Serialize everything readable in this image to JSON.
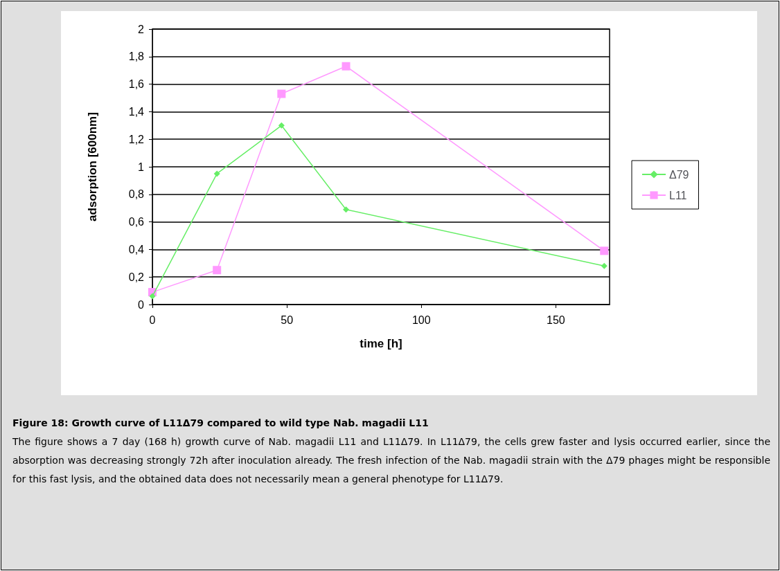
{
  "chart_data": {
    "type": "line",
    "title": "Figure 18: Growth curve of L11Δ79 compared to wild type Nab. magadii L11",
    "xlabel": "time [h]",
    "ylabel": "adsorption [600nm]",
    "annotations": [
      "The figure shows a 7 day (168 h) growth curve of Nab. magadii L11 and L11Δ79. In L11Δ79, the cells grew faster and lysis occurred earlier, since the absorption was decreasing strongly 72h after inoculation already. The fresh infection of the Nab. magadii strain with the Δ79 phages might be responsible for this fast lysis, and the obtained data does not necessarily mean a general phenotype for L11Δ79."
    ],
    "x": [
      0,
      24,
      48,
      72,
      168
    ],
    "series": [
      {
        "name": "Δ79",
        "color": "#66ee66",
        "marker": "diamond",
        "values": [
          0.06,
          0.95,
          1.3,
          0.69,
          0.28
        ]
      },
      {
        "name": "L11",
        "color": "#ff99ff",
        "marker": "square",
        "values": [
          0.09,
          0.25,
          1.53,
          1.73,
          0.39
        ]
      }
    ],
    "xlim": [
      0,
      170
    ],
    "xticks": [
      0,
      50,
      100,
      150
    ],
    "ylim": [
      0,
      2
    ],
    "yticks": [
      0,
      {
        "value": 0.2,
        "label": "0,2"
      },
      {
        "value": 0.4,
        "label": "0,4"
      },
      {
        "value": 0.6,
        "label": "0,6"
      },
      {
        "value": 0.8,
        "label": "0,8"
      },
      1,
      {
        "value": 1.2,
        "label": "1,2"
      },
      {
        "value": 1.4,
        "label": "1,4"
      },
      {
        "value": 1.6,
        "label": "1,6"
      },
      {
        "value": 1.8,
        "label": "1,8"
      },
      2
    ],
    "grid": "y",
    "legend": "right",
    "line_style": "solid"
  }
}
